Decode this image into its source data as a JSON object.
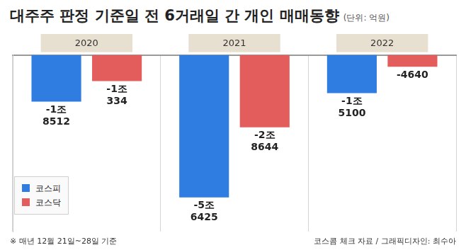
{
  "chart_data": {
    "type": "bar",
    "title": "대주주 판정 기준일 전 6거래일 간 개인 매매동향",
    "subtitle": "(단위: 억원)",
    "categories": [
      "2020",
      "2021",
      "2022"
    ],
    "series": [
      {
        "name": "코스피",
        "color": "#2f7de1",
        "values": [
          -18512,
          -56425,
          -15100
        ],
        "value_labels": [
          "-1조 8512",
          "-5조 6425",
          "-1조 5100"
        ]
      },
      {
        "name": "코스닥",
        "color": "#e35d5d",
        "values": [
          -10334,
          -28644,
          -4640
        ],
        "value_labels": [
          "-1조 334",
          "-2조 8644",
          "-4640"
        ]
      }
    ],
    "ylim": [
      -70000,
      0
    ],
    "tick_labels": "x",
    "data_labels": true,
    "legend": "bottom-left",
    "annotations": [
      "※ 매년 12월 21일~28일 기준",
      "코스콤 체크 자료 / 그래픽디자인: 최수아"
    ]
  }
}
